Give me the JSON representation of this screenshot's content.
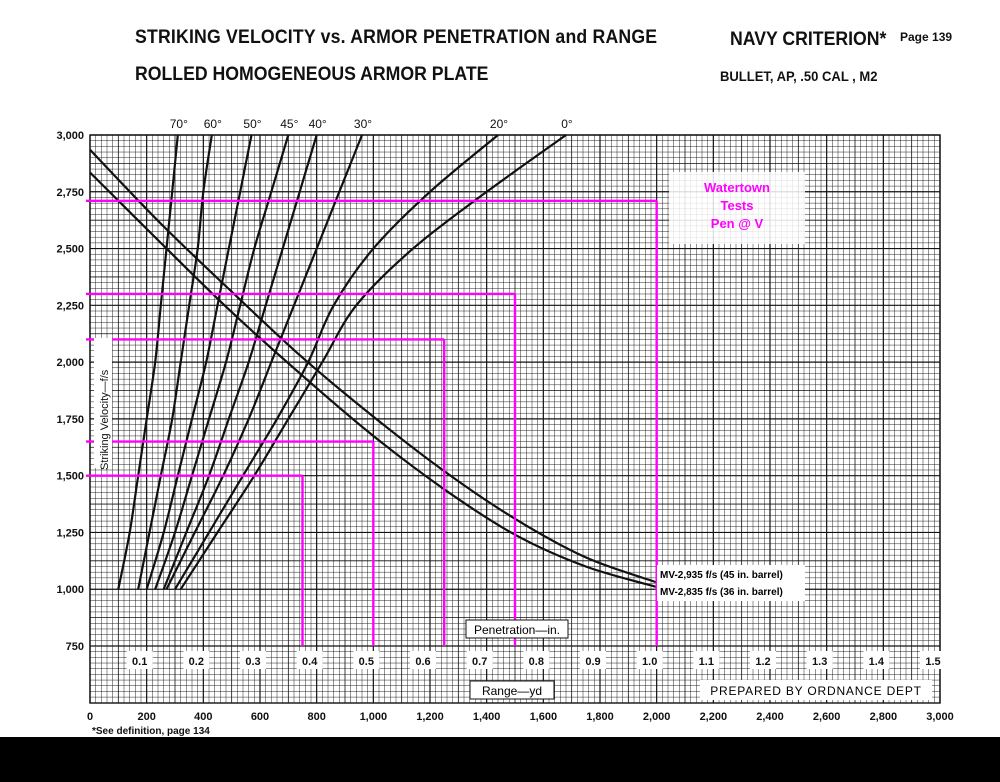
{
  "header": {
    "title_line1": "STRIKING VELOCITY vs. ARMOR PENETRATION and RANGE",
    "title_line2": "ROLLED HOMOGENEOUS ARMOR PLATE",
    "criterion": "NAVY CRITERION*",
    "page": "Page 139",
    "bullet": "BULLET, AP, .50 CAL , M2"
  },
  "footnote": "*See definition, page 134",
  "colors": {
    "grid": "#111111",
    "curves": "#111111",
    "overlay": "#ff00ff",
    "background": "#ffffff"
  },
  "chart_data": {
    "type": "line",
    "ylabel": "Striking Velocity—f/s",
    "penetration_axis_label": "Penetration—in.",
    "range_axis_label": "Range—yd",
    "ylim": [
      750,
      3000
    ],
    "y_ticks": [
      750,
      1000,
      1250,
      1500,
      1750,
      2000,
      2250,
      2500,
      2750,
      3000
    ],
    "y_tick_labels": [
      "750",
      "1,000",
      "1,250",
      "1,500",
      "1,750",
      "2,000",
      "2,250",
      "2,500",
      "2,750",
      "3,000"
    ],
    "range_xlim": [
      0,
      3000
    ],
    "range_ticks": [
      0,
      200,
      400,
      600,
      800,
      1000,
      1200,
      1400,
      1600,
      1800,
      2000,
      2200,
      2400,
      2600,
      2800,
      3000
    ],
    "range_tick_labels": [
      "0",
      "200",
      "400",
      "600",
      "800",
      "1,000",
      "1,200",
      "1,400",
      "1,600",
      "1,800",
      "2,000",
      "2,200",
      "2,400",
      "2,600",
      "2,800",
      "3,000"
    ],
    "penetration_xlim": [
      0,
      1.5
    ],
    "penetration_ticks": [
      0.1,
      0.2,
      0.3,
      0.4,
      0.5,
      0.6,
      0.7,
      0.8,
      0.9,
      1.0,
      1.1,
      1.2,
      1.3,
      1.4,
      1.5
    ],
    "penetration_tick_labels": [
      "0.1",
      "0.2",
      "0.3",
      "0.4",
      "0.5",
      "0.6",
      "0.7",
      "0.8",
      "0.9",
      "1.0",
      "1.1",
      "1.2",
      "1.3",
      "1.4",
      "1.5"
    ],
    "grid": true,
    "obliquity_series": [
      {
        "name": "70°",
        "x": [
          0.05,
          0.07,
          0.085,
          0.1,
          0.115,
          0.125,
          0.135,
          0.145,
          0.155
        ],
        "y": [
          1000,
          1250,
          1500,
          1750,
          2000,
          2250,
          2500,
          2750,
          3000
        ]
      },
      {
        "name": "60°",
        "x": [
          0.085,
          0.105,
          0.125,
          0.145,
          0.16,
          0.175,
          0.19,
          0.2,
          0.215
        ],
        "y": [
          1000,
          1250,
          1500,
          1750,
          2000,
          2250,
          2500,
          2750,
          3000
        ]
      },
      {
        "name": "50°",
        "x": [
          0.1,
          0.13,
          0.155,
          0.18,
          0.205,
          0.225,
          0.245,
          0.265,
          0.285
        ],
        "y": [
          1000,
          1250,
          1500,
          1750,
          2000,
          2250,
          2500,
          2750,
          3000
        ]
      },
      {
        "name": "45°",
        "x": [
          0.115,
          0.15,
          0.18,
          0.21,
          0.24,
          0.265,
          0.29,
          0.32,
          0.35
        ],
        "y": [
          1000,
          1250,
          1500,
          1750,
          2000,
          2250,
          2500,
          2750,
          3000
        ]
      },
      {
        "name": "40°",
        "x": [
          0.13,
          0.17,
          0.21,
          0.245,
          0.28,
          0.31,
          0.34,
          0.37,
          0.4
        ],
        "y": [
          1000,
          1250,
          1500,
          1750,
          2000,
          2250,
          2500,
          2750,
          3000
        ]
      },
      {
        "name": "30°",
        "x": [
          0.135,
          0.185,
          0.235,
          0.28,
          0.32,
          0.36,
          0.4,
          0.44,
          0.48
        ],
        "y": [
          1000,
          1250,
          1500,
          1750,
          2000,
          2250,
          2500,
          2750,
          3000
        ]
      },
      {
        "name": "20°",
        "x": [
          0.15,
          0.21,
          0.27,
          0.33,
          0.385,
          0.43,
          0.5,
          0.6,
          0.72
        ],
        "y": [
          1000,
          1250,
          1500,
          1750,
          2000,
          2250,
          2500,
          2750,
          3000
        ]
      },
      {
        "name": "0°",
        "x": [
          0.16,
          0.225,
          0.29,
          0.35,
          0.41,
          0.47,
          0.57,
          0.7,
          0.84
        ],
        "y": [
          1000,
          1250,
          1500,
          1750,
          2000,
          2250,
          2500,
          2750,
          3000
        ]
      }
    ],
    "range_series": [
      {
        "name": "MV-2,935 f/s (45 in. barrel)",
        "x": [
          0,
          250,
          500,
          750,
          1000,
          1250,
          1500,
          1750,
          2000
        ],
        "y": [
          2935,
          2610,
          2310,
          2020,
          1760,
          1520,
          1310,
          1140,
          1030
        ]
      },
      {
        "name": "MV-2,835 f/s (36 in. barrel)",
        "x": [
          0,
          250,
          500,
          750,
          1000,
          1250,
          1500,
          1750,
          2000
        ],
        "y": [
          2835,
          2525,
          2220,
          1940,
          1675,
          1440,
          1240,
          1100,
          1010
        ]
      }
    ],
    "annotation": {
      "lines": [
        "Watertown",
        "Tests",
        "Pen @ V"
      ]
    },
    "watertown_tests": [
      {
        "penetration": 0.375,
        "velocity": 1500
      },
      {
        "penetration": 0.5,
        "velocity": 1650
      },
      {
        "penetration": 0.625,
        "velocity": 2100
      },
      {
        "penetration": 0.75,
        "velocity": 2300
      },
      {
        "penetration": 1.0,
        "velocity": 2710
      }
    ],
    "footer_label": "PREPARED BY ORDNANCE DEPT"
  }
}
